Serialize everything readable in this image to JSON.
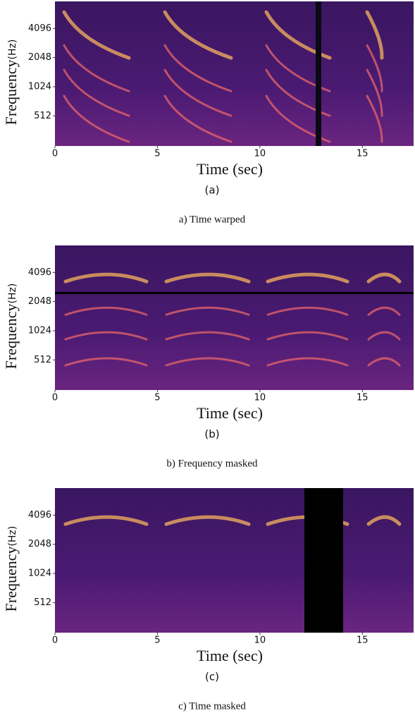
{
  "chart_data": [
    {
      "type": "spectrogram",
      "ylabel": "Frequency",
      "yunit": "(Hz)",
      "xlabel": "Time (sec)",
      "label": "(a)",
      "caption": "a) Time warped",
      "xlim": [
        0,
        17.5
      ],
      "xticks": [
        0,
        5,
        10,
        15
      ],
      "ylim": [
        250,
        7800
      ],
      "yticks": [
        512,
        1024,
        2048,
        4096
      ],
      "yscale": "log"
    },
    {
      "type": "spectrogram",
      "ylabel": "Frequency",
      "yunit": "(Hz)",
      "xlabel": "Time (sec)",
      "label": "(b)",
      "caption": "b) Frequency masked",
      "xlim": [
        0,
        17.5
      ],
      "xticks": [
        0,
        5,
        10,
        15
      ],
      "ylim": [
        250,
        7800
      ],
      "yticks": [
        512,
        1024,
        2048,
        4096
      ],
      "yscale": "log"
    },
    {
      "type": "spectrogram",
      "ylabel": "Frequency",
      "yunit": "(Hz)",
      "xlabel": "Time (sec)",
      "label": "(c)",
      "caption": "c) Time masked",
      "xlim": [
        0,
        17.5
      ],
      "xticks": [
        0,
        5,
        10,
        15
      ],
      "ylim": [
        250,
        7800
      ],
      "yticks": [
        512,
        1024,
        2048,
        4096
      ],
      "yscale": "log"
    }
  ]
}
